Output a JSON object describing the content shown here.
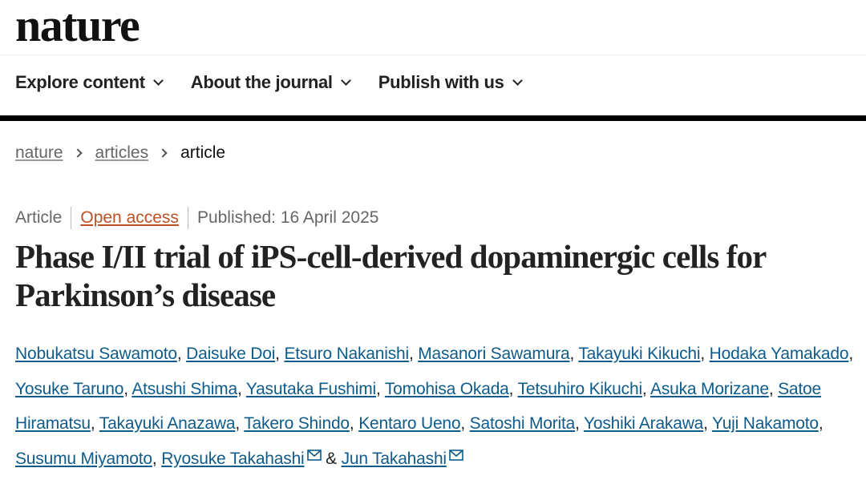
{
  "header": {
    "logo": "nature"
  },
  "nav": [
    {
      "label": "Explore content"
    },
    {
      "label": "About the journal"
    },
    {
      "label": "Publish with us"
    }
  ],
  "breadcrumb": [
    {
      "label": "nature"
    },
    {
      "label": "articles"
    },
    {
      "label": "article"
    }
  ],
  "meta": {
    "type": "Article",
    "access": "Open access",
    "published": "Published: 16 April 2025"
  },
  "colors": {
    "link": "#0f5c8c",
    "open_access": "#c0501f"
  },
  "title": "Phase I/II trial of iPS-cell-derived dopaminergic cells for Parkinson’s disease",
  "authors": [
    {
      "name": "Nobukatsu Sawamoto"
    },
    {
      "name": "Daisuke Doi"
    },
    {
      "name": "Etsuro Nakanishi"
    },
    {
      "name": "Masanori Sawamura"
    },
    {
      "name": "Takayuki Kikuchi"
    },
    {
      "name": "Hodaka Yamakado"
    },
    {
      "name": "Yosuke Taruno"
    },
    {
      "name": "Atsushi Shima"
    },
    {
      "name": "Yasutaka Fushimi"
    },
    {
      "name": "Tomohisa Okada"
    },
    {
      "name": "Tetsuhiro Kikuchi"
    },
    {
      "name": "Asuka Morizane"
    },
    {
      "name": "Satoe Hiramatsu"
    },
    {
      "name": "Takayuki Anazawa"
    },
    {
      "name": "Takero Shindo"
    },
    {
      "name": "Kentaro Ueno"
    },
    {
      "name": "Satoshi Morita"
    },
    {
      "name": "Yoshiki Arakawa"
    },
    {
      "name": "Yuji Nakamoto"
    },
    {
      "name": "Susumu Miyamoto"
    },
    {
      "name": "Ryosuke Takahashi",
      "contact": true
    },
    {
      "name": "Jun Takahashi",
      "contact": true
    }
  ],
  "authors_conjunction": "&"
}
